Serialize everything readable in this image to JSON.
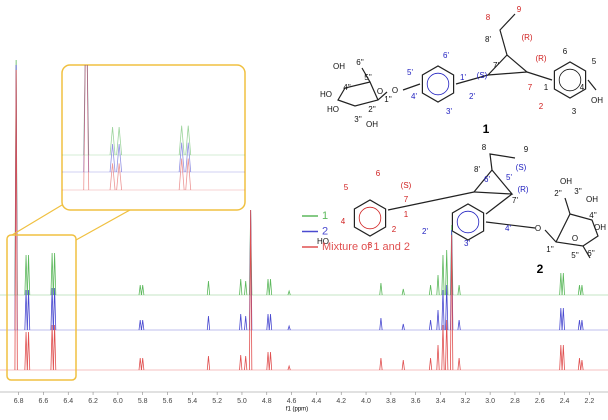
{
  "chart_data": {
    "type": "spectrum",
    "x_label": "f1 (ppm)",
    "xlim": [
      6.95,
      2.05
    ],
    "xticks": [
      6.8,
      6.6,
      6.4,
      6.2,
      {
        "value": 6,
        "label": "6.0"
      },
      5.8,
      5.6,
      5.4,
      5.2,
      {
        "value": 5,
        "label": "5.0"
      },
      4.8,
      4.6,
      4.4,
      4.2,
      {
        "value": 4,
        "label": "4.0"
      },
      3.8,
      3.6,
      3.4,
      3.2,
      {
        "value": 3,
        "label": "3.0"
      },
      2.8,
      2.6,
      2.4,
      2.2
    ],
    "x": [
      6.82,
      6.74,
      6.72,
      6.53,
      6.51,
      5.82,
      5.8,
      5.27,
      5.01,
      4.97,
      4.93,
      4.79,
      4.77,
      4.62,
      3.88,
      3.7,
      3.48,
      3.42,
      3.38,
      3.35,
      3.31,
      3.25,
      2.43,
      2.41,
      2.28,
      2.26
    ],
    "series": [
      {
        "name": "1",
        "color": "#5cb85c",
        "values": [
          235,
          40,
          40,
          42,
          42,
          10,
          10,
          14,
          16,
          14,
          85,
          16,
          16,
          4,
          12,
          6,
          10,
          20,
          40,
          45,
          70,
          10,
          22,
          22,
          10,
          10
        ]
      },
      {
        "name": "2",
        "color": "#4a4ad0",
        "values": [
          265,
          40,
          40,
          42,
          42,
          10,
          10,
          14,
          16,
          14,
          120,
          16,
          16,
          4,
          12,
          6,
          10,
          20,
          40,
          45,
          100,
          10,
          22,
          22,
          10,
          10
        ]
      },
      {
        "name": "Mixture of 1 and 2",
        "color": "#e05050",
        "values": [
          300,
          38,
          38,
          45,
          45,
          12,
          12,
          14,
          15,
          14,
          160,
          18,
          18,
          4,
          12,
          10,
          12,
          25,
          45,
          50,
          135,
          12,
          25,
          25,
          12,
          10
        ]
      }
    ]
  },
  "structures": [
    {
      "label": "1",
      "atoms": [
        "8",
        "9",
        "8'",
        "(R)",
        "7'",
        "(R)",
        "7",
        "1",
        "6",
        "5",
        "4",
        "OH",
        "3",
        "2",
        "6'",
        "5'",
        "1'",
        "(S)",
        "4'",
        "3'",
        "2'",
        "O",
        "OH",
        "6''",
        "5''",
        "O",
        "4''",
        "HO",
        "HO",
        "3''",
        "2''",
        "1''",
        "OH"
      ]
    },
    {
      "label": "2",
      "atoms": [
        "8",
        "9",
        "8'",
        "(S)",
        "(R)",
        "7'",
        "(S)",
        "7",
        "6",
        "5",
        "4",
        "HO",
        "1",
        "2",
        "3",
        "6'",
        "5'",
        "2'",
        "3'",
        "4'",
        "O",
        "2''",
        "3''",
        "OH",
        "OH",
        "4''",
        "OH",
        "1''",
        "O",
        "5''",
        "6''"
      ]
    }
  ]
}
